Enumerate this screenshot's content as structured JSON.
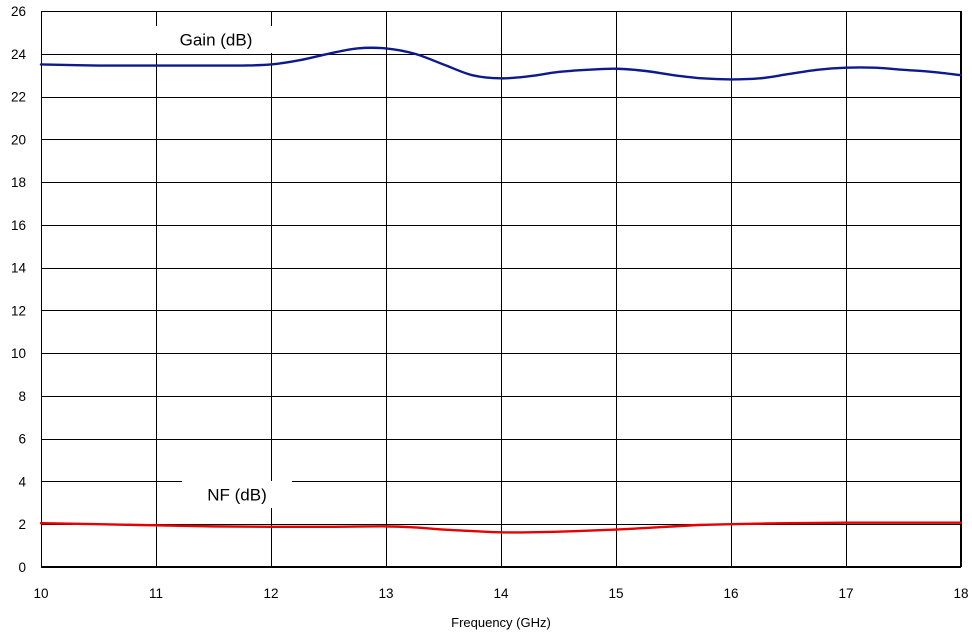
{
  "chart_data": {
    "type": "line",
    "title": "",
    "xlabel": "Frequency (GHz)",
    "ylabel": "",
    "xlim": [
      10,
      18
    ],
    "ylim": [
      0,
      26
    ],
    "x_ticks": [
      10,
      11,
      12,
      13,
      14,
      15,
      16,
      17,
      18
    ],
    "y_ticks": [
      0,
      2,
      4,
      6,
      8,
      10,
      12,
      14,
      16,
      18,
      20,
      22,
      24,
      26
    ],
    "grid": true,
    "legend": "none",
    "series": [
      {
        "name": "Gain (dB)",
        "color": "#0d1a8c",
        "x": [
          10,
          10.5,
          11,
          11.5,
          11.75,
          12,
          12.25,
          12.5,
          12.75,
          13,
          13.25,
          13.5,
          13.75,
          14,
          14.25,
          14.5,
          14.75,
          15,
          15.25,
          15.5,
          15.75,
          16,
          16.25,
          16.5,
          16.75,
          17,
          17.25,
          17.5,
          17.75,
          18
        ],
        "y": [
          23.5,
          23.45,
          23.45,
          23.45,
          23.45,
          23.5,
          23.7,
          24.0,
          24.25,
          24.25,
          24.0,
          23.5,
          23.0,
          22.85,
          22.95,
          23.15,
          23.25,
          23.3,
          23.2,
          23.0,
          22.85,
          22.8,
          22.85,
          23.05,
          23.25,
          23.35,
          23.35,
          23.25,
          23.15,
          23.0
        ]
      },
      {
        "name": "NF (dB)",
        "color": "#e60000",
        "x": [
          10,
          10.5,
          11,
          11.5,
          12,
          12.5,
          13,
          13.25,
          13.5,
          13.75,
          14,
          14.25,
          14.5,
          14.75,
          15,
          15.25,
          15.5,
          15.75,
          16,
          16.5,
          17,
          17.5,
          18
        ],
        "y": [
          2.05,
          2.0,
          1.95,
          1.9,
          1.88,
          1.88,
          1.9,
          1.85,
          1.75,
          1.68,
          1.62,
          1.62,
          1.65,
          1.7,
          1.75,
          1.82,
          1.9,
          1.97,
          2.0,
          2.05,
          2.07,
          2.07,
          2.07
        ]
      }
    ],
    "annotations": [
      {
        "text": "Gain (dB)",
        "series": "Gain (dB)"
      },
      {
        "text": "NF (dB)",
        "series": "NF (dB)"
      }
    ]
  }
}
